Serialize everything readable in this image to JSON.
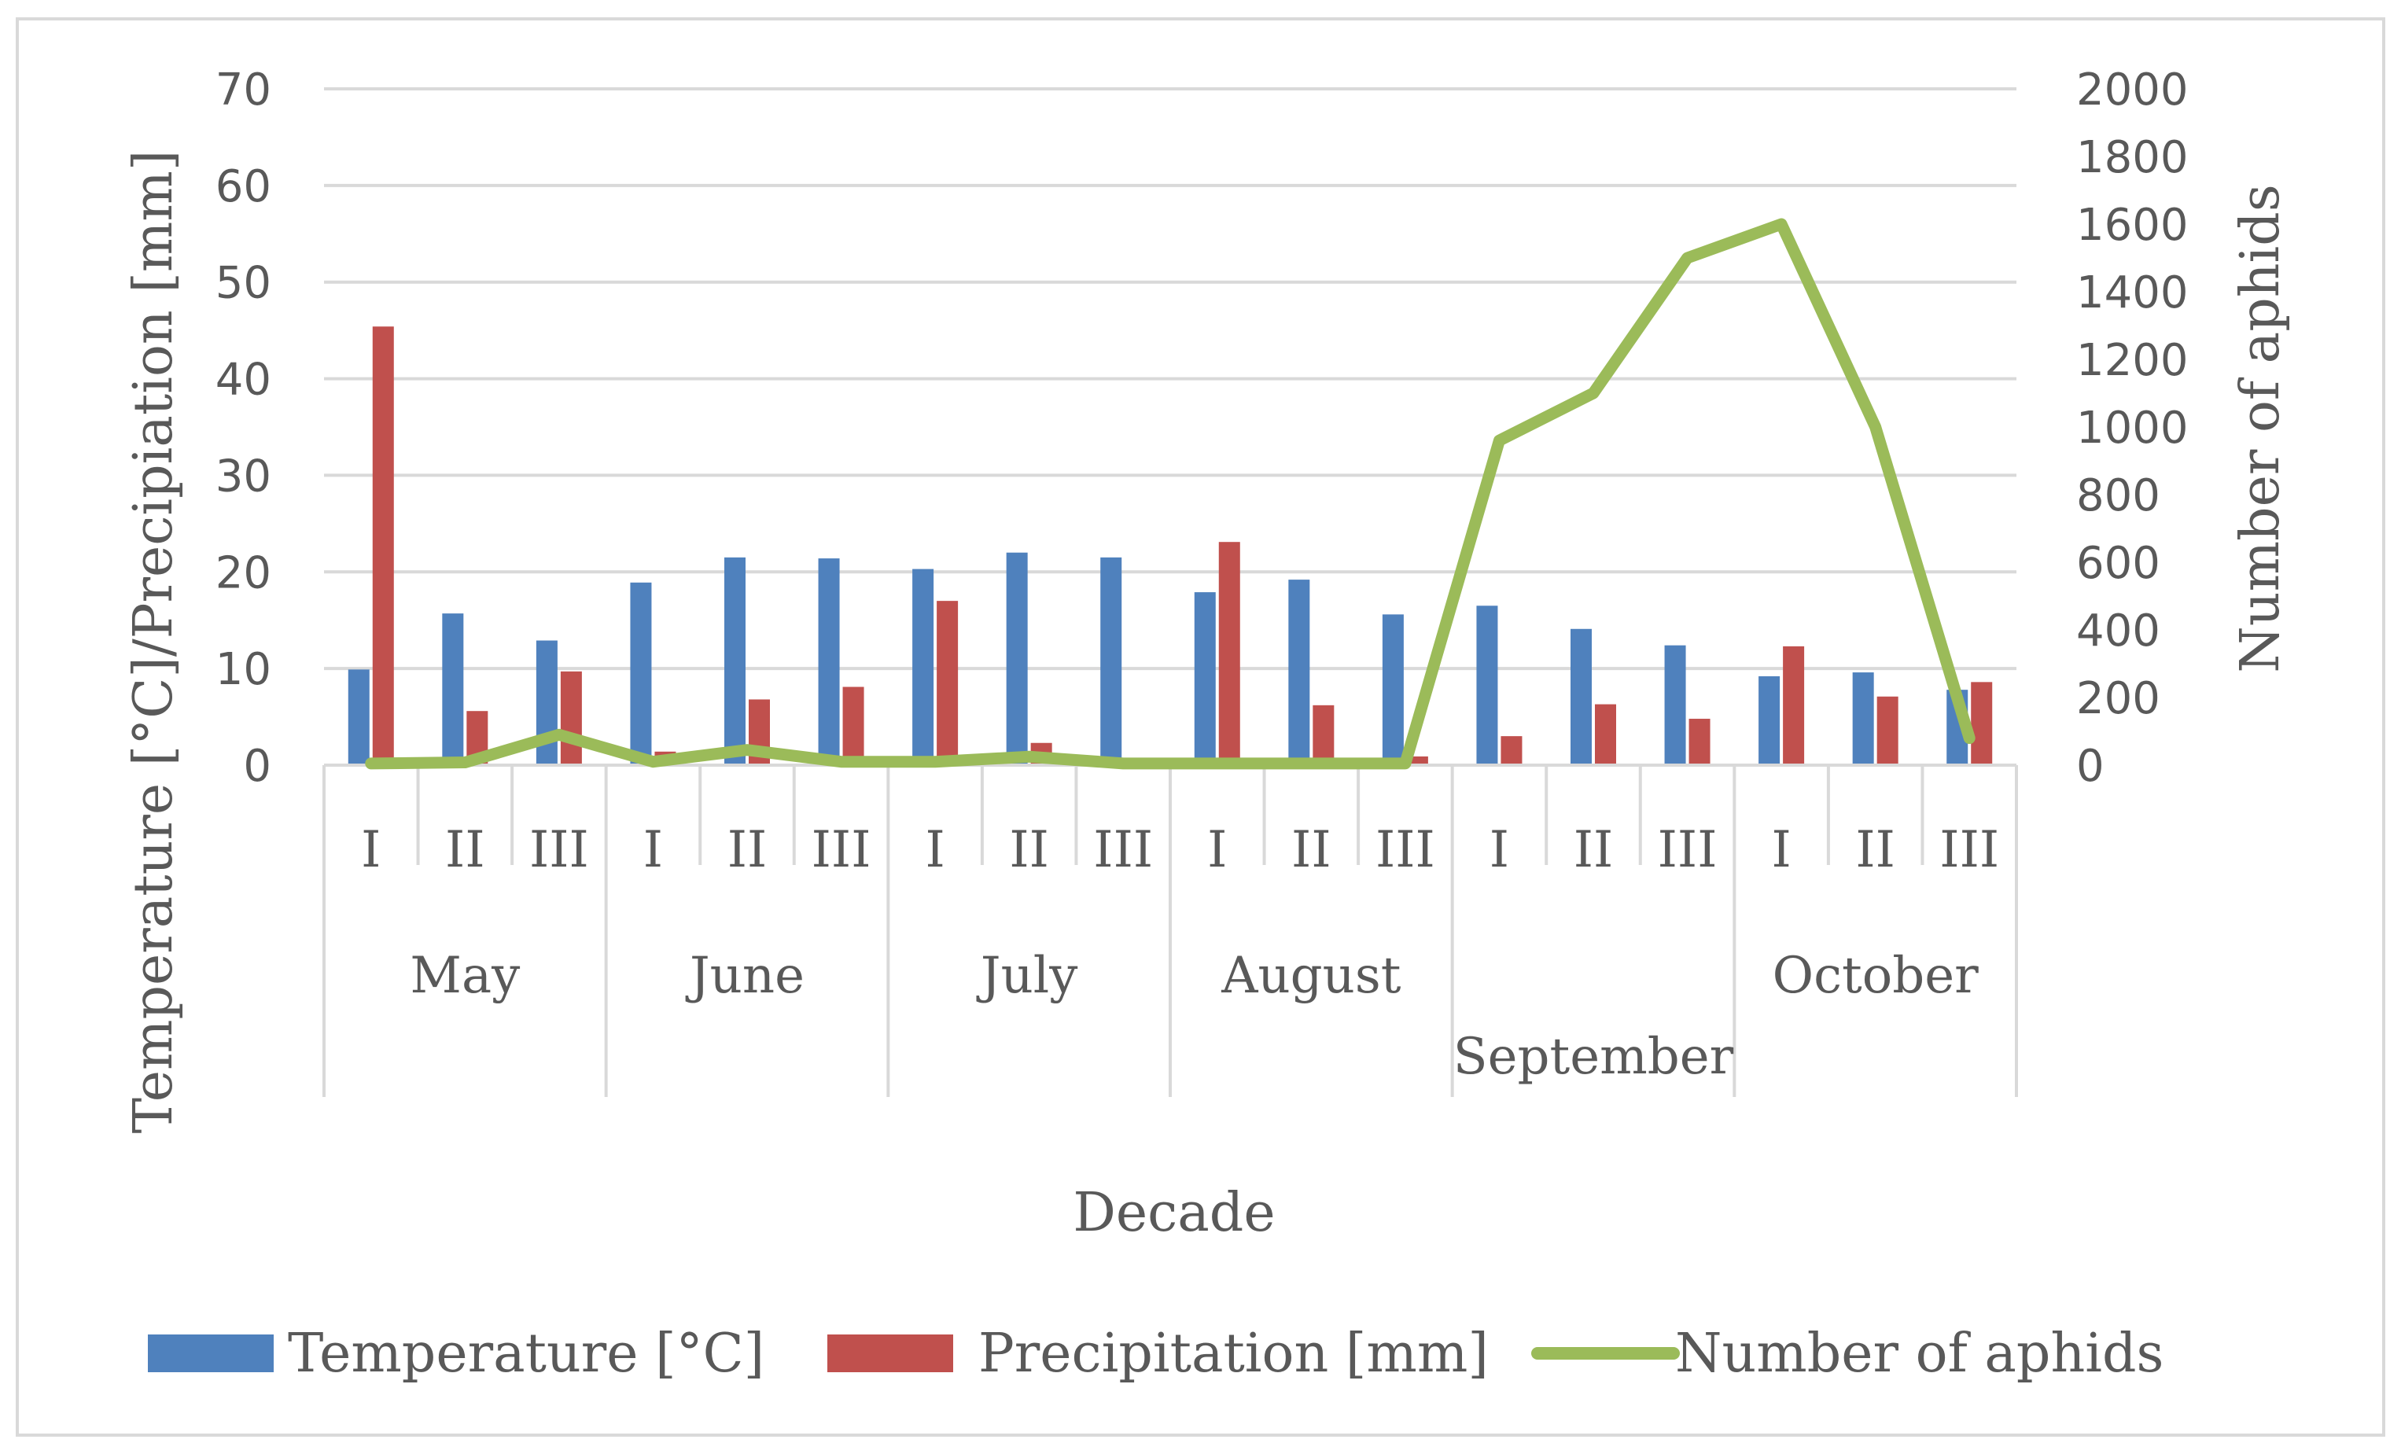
{
  "chart_data": {
    "type": "bar",
    "title": "",
    "xlabel": "Decade",
    "ylabel": "Temperature [°C]/Precipiation [mm]",
    "y2label": "Number of aphids",
    "ylim": [
      0,
      70
    ],
    "y2lim": [
      0,
      2000
    ],
    "yticks": [
      0,
      10,
      20,
      30,
      40,
      50,
      60,
      70
    ],
    "y2ticks": [
      0,
      200,
      400,
      600,
      800,
      1000,
      1200,
      1400,
      1600,
      1800,
      2000
    ],
    "grid": true,
    "legend_position": "bottom",
    "groups": [
      {
        "label": "May",
        "categories": [
          "I",
          "II",
          "III"
        ]
      },
      {
        "label": "June",
        "categories": [
          "I",
          "II",
          "III"
        ]
      },
      {
        "label": "July",
        "categories": [
          "I",
          "II",
          "III"
        ]
      },
      {
        "label": "August",
        "categories": [
          "I",
          "II",
          "III"
        ]
      },
      {
        "label": "September",
        "categories": [
          "I",
          "II",
          "III"
        ]
      },
      {
        "label": "October",
        "categories": [
          "I",
          "II",
          "III"
        ]
      }
    ],
    "series": [
      {
        "name": "Temperature [°C]",
        "type": "bar",
        "axis": "left",
        "color": "#4f81bd",
        "values": [
          9.9,
          15.7,
          12.9,
          18.9,
          21.5,
          21.4,
          20.3,
          22.0,
          21.5,
          17.9,
          19.2,
          15.6,
          16.5,
          14.1,
          12.4,
          9.2,
          9.6,
          7.8
        ]
      },
      {
        "name": "Precipitation [mm]",
        "type": "bar",
        "axis": "left",
        "color": "#c0504d",
        "values": [
          45.4,
          5.6,
          9.7,
          1.4,
          6.8,
          8.1,
          17.0,
          2.3,
          0,
          23.1,
          6.2,
          0.9,
          3.0,
          6.3,
          4.8,
          12.3,
          7.1,
          8.6
        ]
      },
      {
        "name": "Number of aphids",
        "type": "line",
        "axis": "right",
        "color": "#9bbb59",
        "values": [
          5,
          8,
          90,
          10,
          45,
          10,
          10,
          25,
          5,
          5,
          5,
          5,
          960,
          1100,
          1500,
          1600,
          1000,
          80
        ]
      }
    ]
  }
}
